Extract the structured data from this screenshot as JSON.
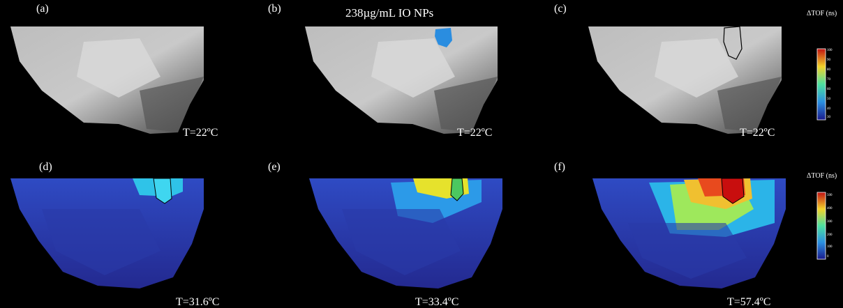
{
  "figure": {
    "title": "238µg/mL IO NPs",
    "panels": [
      {
        "label": "(a)",
        "temperature": "T=22ºC"
      },
      {
        "label": "(b)",
        "temperature": "T=22ºC"
      },
      {
        "label": "(c)",
        "temperature": "T=22ºC"
      },
      {
        "label": "(d)",
        "temperature": "T=31.6ºC"
      },
      {
        "label": "(e)",
        "temperature": "T=33.4ºC"
      },
      {
        "label": "(f)",
        "temperature": "T=57.4ºC"
      }
    ],
    "colorbars": [
      {
        "title": "ΔTOF (ns)",
        "ticks": [
          "100",
          "90",
          "80",
          "70",
          "60",
          "50",
          "40",
          "30"
        ]
      },
      {
        "title": "ΔTOF (ns)",
        "ticks": [
          "500",
          "400",
          "300",
          "200",
          "100",
          "0"
        ]
      }
    ],
    "colors": {
      "background": "#000000",
      "outline": "#000000"
    }
  }
}
